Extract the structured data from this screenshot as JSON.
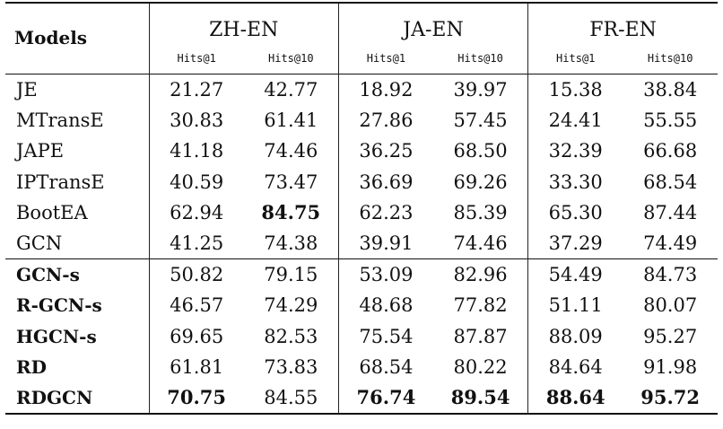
{
  "header": {
    "models_label": "Models",
    "groups": [
      "ZH-EN",
      "JA-EN",
      "FR-EN"
    ],
    "metrics": [
      "Hits@1",
      "Hits@10"
    ]
  },
  "baselines": [
    {
      "model": "JE",
      "values": [
        "21.27",
        "42.77",
        "18.92",
        "39.97",
        "15.38",
        "38.84"
      ],
      "bold": [
        false,
        false,
        false,
        false,
        false,
        false
      ]
    },
    {
      "model": "MTransE",
      "values": [
        "30.83",
        "61.41",
        "27.86",
        "57.45",
        "24.41",
        "55.55"
      ],
      "bold": [
        false,
        false,
        false,
        false,
        false,
        false
      ]
    },
    {
      "model": "JAPE",
      "values": [
        "41.18",
        "74.46",
        "36.25",
        "68.50",
        "32.39",
        "66.68"
      ],
      "bold": [
        false,
        false,
        false,
        false,
        false,
        false
      ]
    },
    {
      "model": "IPTransE",
      "values": [
        "40.59",
        "73.47",
        "36.69",
        "69.26",
        "33.30",
        "68.54"
      ],
      "bold": [
        false,
        false,
        false,
        false,
        false,
        false
      ]
    },
    {
      "model": "BootEA",
      "values": [
        "62.94",
        "84.75",
        "62.23",
        "85.39",
        "65.30",
        "87.44"
      ],
      "bold": [
        false,
        true,
        false,
        false,
        false,
        false
      ]
    },
    {
      "model": "GCN",
      "values": [
        "41.25",
        "74.38",
        "39.91",
        "74.46",
        "37.29",
        "74.49"
      ],
      "bold": [
        false,
        false,
        false,
        false,
        false,
        false
      ]
    }
  ],
  "ours": [
    {
      "model": "GCN-s",
      "values": [
        "50.82",
        "79.15",
        "53.09",
        "82.96",
        "54.49",
        "84.73"
      ],
      "bold": [
        false,
        false,
        false,
        false,
        false,
        false
      ]
    },
    {
      "model": "R-GCN-s",
      "values": [
        "46.57",
        "74.29",
        "48.68",
        "77.82",
        "51.11",
        "80.07"
      ],
      "bold": [
        false,
        false,
        false,
        false,
        false,
        false
      ]
    },
    {
      "model": "HGCN-s",
      "values": [
        "69.65",
        "82.53",
        "75.54",
        "87.87",
        "88.09",
        "95.27"
      ],
      "bold": [
        false,
        false,
        false,
        false,
        false,
        false
      ]
    },
    {
      "model": "RD",
      "values": [
        "61.81",
        "73.83",
        "68.54",
        "80.22",
        "84.64",
        "91.98"
      ],
      "bold": [
        false,
        false,
        false,
        false,
        false,
        false
      ]
    },
    {
      "model": "RDGCN",
      "values": [
        "70.75",
        "84.55",
        "76.74",
        "89.54",
        "88.64",
        "95.72"
      ],
      "bold": [
        true,
        false,
        true,
        true,
        true,
        true
      ]
    }
  ]
}
